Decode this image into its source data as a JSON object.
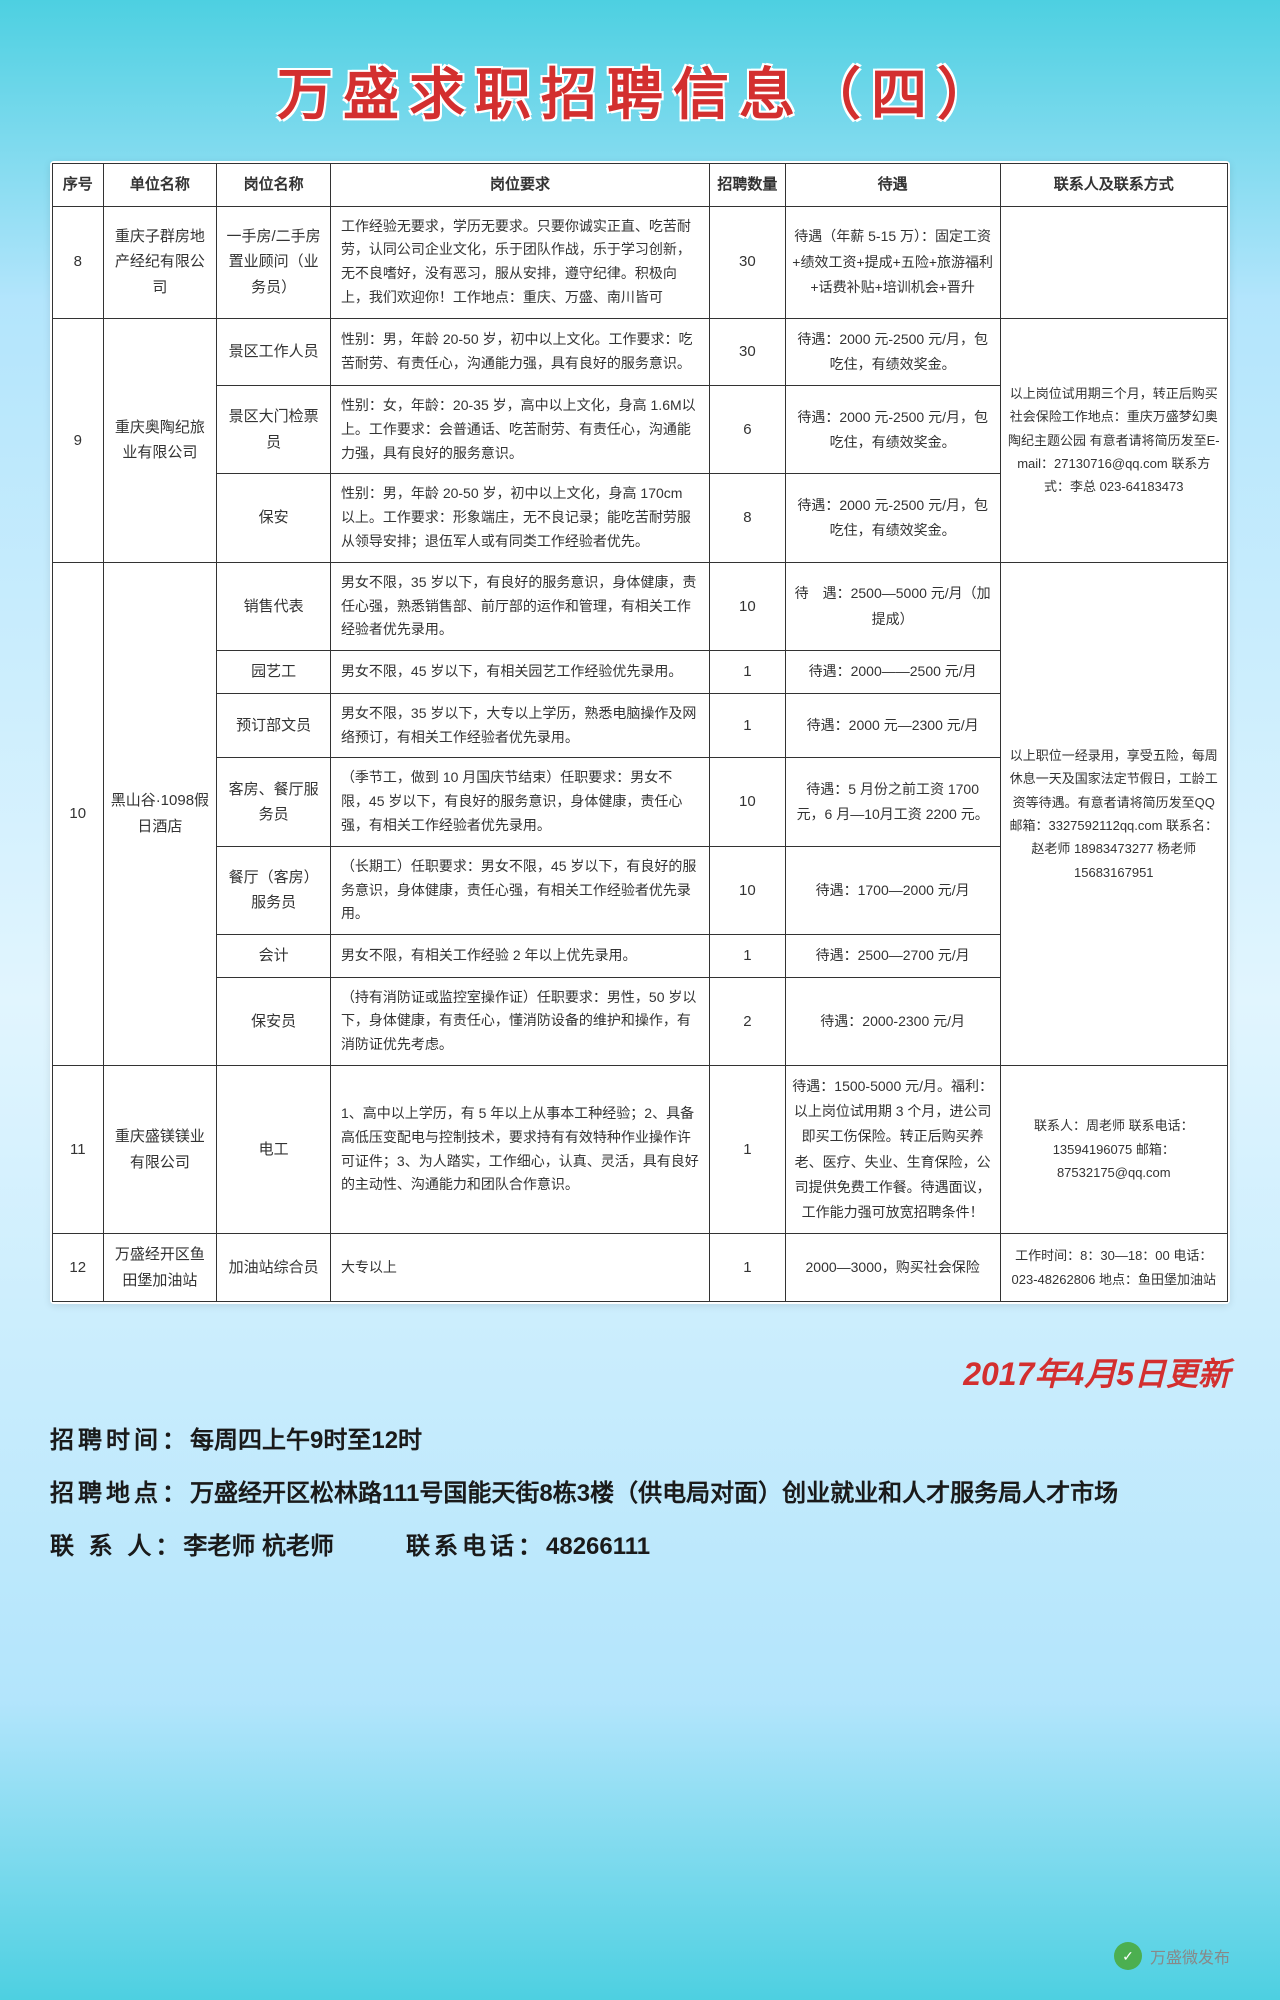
{
  "title": "万盛求职招聘信息（四）",
  "updateDate": "2017年4月5日更新",
  "headers": {
    "seq": "序号",
    "company": "单位名称",
    "position": "岗位名称",
    "requirement": "岗位要求",
    "qty": "招聘数量",
    "treatment": "待遇",
    "contact": "联系人及联系方式"
  },
  "rows": [
    {
      "seq": "8",
      "company": "重庆子群房地产经纪有限公司",
      "position": "一手房/二手房 置业顾问（业务员）",
      "req": "工作经验无要求，学历无要求。只要你诚实正直、吃苦耐劳，认同公司企业文化，乐于团队作战，乐于学习创新，无不良嗜好，没有恶习，服从安排，遵守纪律。积极向上，我们欢迎你！工作地点：重庆、万盛、南川皆可",
      "qty": "30",
      "treat": "待遇（年薪 5-15 万）：固定工资+绩效工资+提成+五险+旅游福利+话费补贴+培训机会+晋升",
      "contact": ""
    },
    {
      "seq": "9",
      "company": "重庆奥陶纪旅业有限公司",
      "positions": [
        {
          "position": "景区工作人员",
          "req": "性别：男，年龄 20-50 岁，初中以上文化。工作要求：吃苦耐劳、有责任心，沟通能力强，具有良好的服务意识。",
          "qty": "30",
          "treat": "待遇：2000 元-2500 元/月，包吃住，有绩效奖金。"
        },
        {
          "position": "景区大门检票员",
          "req": "性别：女，年龄：20-35 岁，高中以上文化，身高 1.6M以上。工作要求：会普通话、吃苦耐劳、有责任心，沟通能力强，具有良好的服务意识。",
          "qty": "6",
          "treat": "待遇：2000 元-2500 元/月，包吃住，有绩效奖金。"
        },
        {
          "position": "保安",
          "req": "性别：男，年龄 20-50 岁，初中以上文化，身高 170cm 以上。工作要求：形象端庄，无不良记录；能吃苦耐劳服从领导安排；退伍军人或有同类工作经验者优先。",
          "qty": "8",
          "treat": "待遇：2000 元-2500 元/月，包吃住，有绩效奖金。"
        }
      ],
      "contact": "以上岗位试用期三个月，转正后购买社会保险工作地点：重庆万盛梦幻奥陶纪主题公园 有意者请将简历发至E-mail：27130716@qq.com 联系方式：李总 023-64183473"
    },
    {
      "seq": "10",
      "company": "黑山谷·1098假日酒店",
      "positions": [
        {
          "position": "销售代表",
          "req": "男女不限，35 岁以下，有良好的服务意识，身体健康，责任心强，熟悉销售部、前厅部的运作和管理，有相关工作经验者优先录用。",
          "qty": "10",
          "treat": "待　遇：2500—5000 元/月（加提成）"
        },
        {
          "position": "园艺工",
          "req": "男女不限，45 岁以下，有相关园艺工作经验优先录用。",
          "qty": "1",
          "treat": "待遇：2000——2500 元/月"
        },
        {
          "position": "预订部文员",
          "req": "男女不限，35 岁以下，大专以上学历，熟悉电脑操作及网络预订，有相关工作经验者优先录用。",
          "qty": "1",
          "treat": "待遇：2000 元—2300 元/月"
        },
        {
          "position": "客房、餐厅服务员",
          "req": "（季节工，做到 10 月国庆节结束）任职要求：男女不限，45 岁以下，有良好的服务意识，身体健康，责任心强，有相关工作经验者优先录用。",
          "qty": "10",
          "treat": "待遇：5 月份之前工资 1700 元，6 月—10月工资 2200 元。"
        },
        {
          "position": "餐厅（客房）服务员",
          "req": "（长期工）任职要求：男女不限，45 岁以下，有良好的服务意识，身体健康，责任心强，有相关工作经验者优先录用。",
          "qty": "10",
          "treat": "待遇：1700—2000 元/月"
        },
        {
          "position": "会计",
          "req": "男女不限，有相关工作经验 2 年以上优先录用。",
          "qty": "1",
          "treat": "待遇：2500—2700 元/月"
        },
        {
          "position": "保安员",
          "req": "（持有消防证或监控室操作证）任职要求：男性，50 岁以下，身体健康，有责任心，懂消防设备的维护和操作，有消防证优先考虑。",
          "qty": "2",
          "treat": "待遇：2000-2300 元/月"
        }
      ],
      "contact": "以上职位一经录用，享受五险，每周休息一天及国家法定节假日，工龄工资等待遇。有意者请将简历发至QQ 邮箱：3327592112qq.com 联系名：赵老师 18983473277 杨老师 15683167951"
    },
    {
      "seq": "11",
      "company": "重庆盛镁镁业有限公司",
      "position": "电工",
      "req": "1、高中以上学历，有 5 年以上从事本工种经验；2、具备高低压变配电与控制技术，要求持有有效特种作业操作许可证件；3、为人踏实，工作细心，认真、灵活，具有良好的主动性、沟通能力和团队合作意识。",
      "qty": "1",
      "treat": "待遇：1500-5000 元/月。福利：以上岗位试用期 3 个月，进公司即买工伤保险。转正后购买养老、医疗、失业、生育保险，公司提供免费工作餐。待遇面议，工作能力强可放宽招聘条件！",
      "contact": "联系人：周老师 联系电话：13594196075 邮箱：87532175@qq.com"
    },
    {
      "seq": "12",
      "company": "万盛经开区鱼田堡加油站",
      "position": "加油站综合员",
      "req": "大专以上",
      "qty": "1",
      "treat": "2000—3000，购买社会保险",
      "contact": "工作时间：8：30—18：00 电话：023-48262806 地点：鱼田堡加油站"
    }
  ],
  "footer": {
    "time": {
      "label": "招聘时间：",
      "value": "每周四上午9时至12时"
    },
    "place": {
      "label": "招聘地点：",
      "value": "万盛经开区松林路111号国能天街8栋3楼（供电局对面）创业就业和人才服务局人才市场"
    },
    "person": {
      "label": "联 系 人：",
      "value": "李老师 杭老师"
    },
    "phone": {
      "label": "联系电话：",
      "value": "48266111"
    }
  },
  "wechat": "万盛微发布",
  "colors": {
    "titleColor": "#d32f2f",
    "dateColor": "#d32f2f",
    "border": "#333"
  }
}
